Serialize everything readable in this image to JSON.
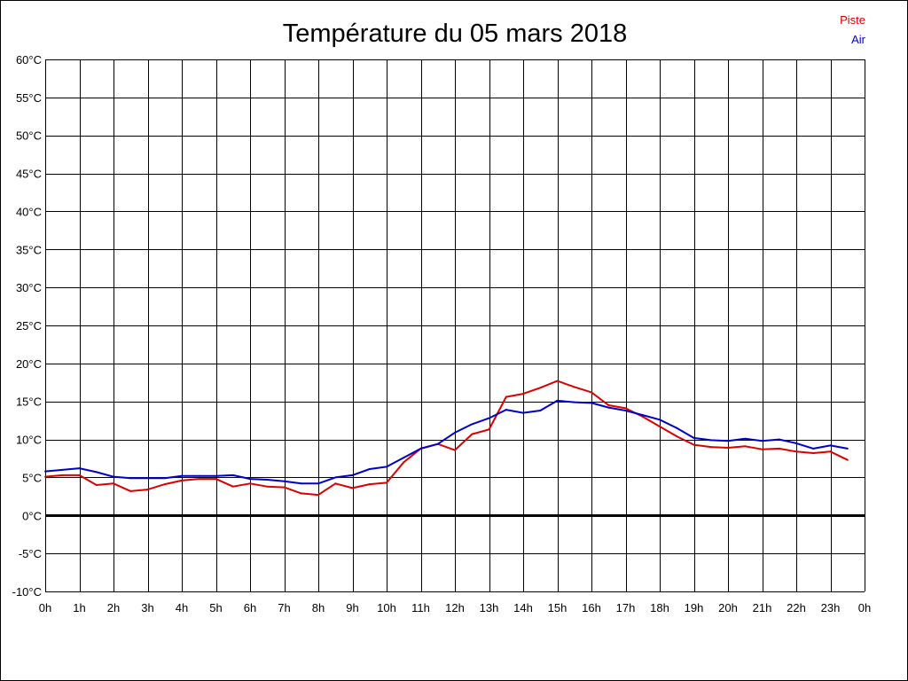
{
  "chart_data": {
    "type": "line",
    "title": "Température du 05 mars 2018",
    "xlabel": "",
    "ylabel": "",
    "x_tick_labels": [
      "0h",
      "1h",
      "2h",
      "3h",
      "4h",
      "5h",
      "6h",
      "7h",
      "8h",
      "9h",
      "10h",
      "11h",
      "12h",
      "13h",
      "14h",
      "15h",
      "16h",
      "17h",
      "18h",
      "19h",
      "20h",
      "21h",
      "22h",
      "23h",
      "0h"
    ],
    "y_tick_labels": [
      "60°C",
      "55°C",
      "50°C",
      "45°C",
      "40°C",
      "35°C",
      "30°C",
      "25°C",
      "20°C",
      "15°C",
      "10°C",
      "5°C",
      "0°C",
      "-5°C",
      "-10°C"
    ],
    "xlim": [
      0,
      24
    ],
    "ylim": [
      -10,
      60
    ],
    "grid": true,
    "legend_position": "top-right",
    "x": [
      0,
      0.5,
      1,
      1.5,
      2,
      2.5,
      3,
      3.5,
      4,
      4.5,
      5,
      5.5,
      6,
      6.5,
      7,
      7.5,
      8,
      8.5,
      9,
      9.5,
      10,
      10.5,
      11,
      11.5,
      12,
      12.5,
      13,
      13.5,
      14,
      14.5,
      15,
      15.5,
      16,
      16.5,
      17,
      17.5,
      18,
      18.5,
      19,
      19.5,
      20,
      20.5,
      21,
      21.5,
      22,
      22.5,
      23,
      23.5
    ],
    "series": [
      {
        "name": "Piste",
        "color": "#dd0000",
        "values": [
          5.1,
          5.3,
          5.3,
          4.0,
          4.2,
          3.2,
          3.4,
          4.1,
          4.6,
          4.8,
          4.8,
          3.8,
          4.2,
          3.8,
          3.7,
          2.9,
          2.7,
          4.2,
          3.6,
          4.1,
          4.3,
          7.0,
          8.8,
          9.4,
          8.6,
          10.7,
          11.3,
          15.6,
          16.0,
          16.8,
          17.7,
          16.9,
          16.2,
          14.5,
          14.1,
          13.0,
          11.7,
          10.4,
          9.3,
          9.0,
          8.9,
          9.1,
          8.7,
          8.8,
          8.4,
          8.2,
          8.4,
          7.3
        ]
      },
      {
        "name": "Air",
        "color": "#0000cc",
        "values": [
          5.8,
          6.0,
          6.2,
          5.7,
          5.1,
          4.9,
          4.9,
          4.9,
          5.2,
          5.2,
          5.2,
          5.3,
          4.8,
          4.7,
          4.5,
          4.2,
          4.2,
          5.0,
          5.3,
          6.1,
          6.4,
          7.6,
          8.8,
          9.4,
          10.9,
          12.0,
          12.8,
          13.9,
          13.5,
          13.8,
          15.1,
          14.9,
          14.8,
          14.2,
          13.8,
          13.2,
          12.6,
          11.5,
          10.2,
          9.9,
          9.8,
          10.1,
          9.8,
          10.0,
          9.5,
          8.8,
          9.2,
          8.8
        ]
      }
    ]
  }
}
